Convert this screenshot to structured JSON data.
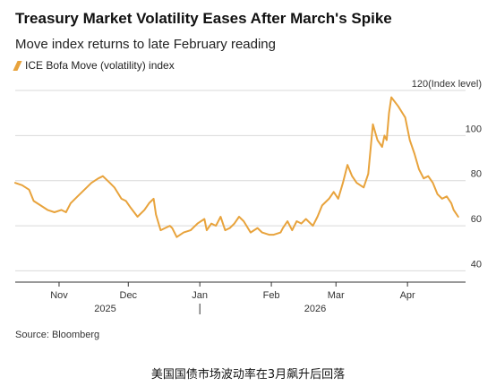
{
  "header": {
    "title": "Treasury Market Volatility Eases After March's Spike",
    "subtitle": "Move index returns to late February reading",
    "legend_label": "ICE Bofa Move (volatility) index"
  },
  "footer": {
    "source": "Source: Bloomberg",
    "caption": "美国国债市场波动率在3月飙升后回落"
  },
  "colors": {
    "series": "#e8a33c",
    "grid": "#d9d9d9",
    "axis": "#333333"
  },
  "chart_data": {
    "type": "line",
    "title": "Treasury Market Volatility Eases After March's Spike",
    "subtitle": "Move index returns to late February reading",
    "y_unit_label": "120(Index level)",
    "ylim": [
      35,
      122
    ],
    "y_ticks": [
      40,
      60,
      80,
      100,
      120
    ],
    "y_tick_labels": [
      "40",
      "60",
      "80",
      "100",
      "120(Index level)"
    ],
    "x_range": [
      "2025-10-13",
      "2026-04-25"
    ],
    "x_ticks": [
      {
        "date": "2025-11-01",
        "label": "Nov"
      },
      {
        "date": "2025-12-01",
        "label": "Dec"
      },
      {
        "date": "2026-01-01",
        "label": "Jan"
      },
      {
        "date": "2026-02-01",
        "label": "Feb"
      },
      {
        "date": "2026-03-01",
        "label": "Mar"
      },
      {
        "date": "2026-04-01",
        "label": "Apr"
      }
    ],
    "year_labels": [
      {
        "date": "2025-11-21",
        "label": "2025"
      },
      {
        "date": "2026-02-20",
        "label": "2026"
      }
    ],
    "year_divider_date": "2026-01-01",
    "grid": true,
    "legend_position": "top-left",
    "series": [
      {
        "name": "ICE Bofa Move (volatility) index",
        "color": "#e8a33c",
        "points": [
          [
            "2025-10-13",
            79
          ],
          [
            "2025-10-16",
            78
          ],
          [
            "2025-10-19",
            76
          ],
          [
            "2025-10-21",
            71
          ],
          [
            "2025-10-24",
            69
          ],
          [
            "2025-10-27",
            67
          ],
          [
            "2025-10-30",
            66
          ],
          [
            "2025-11-02",
            67
          ],
          [
            "2025-11-04",
            66
          ],
          [
            "2025-11-06",
            70
          ],
          [
            "2025-11-09",
            73
          ],
          [
            "2025-11-12",
            76
          ],
          [
            "2025-11-15",
            79
          ],
          [
            "2025-11-18",
            81
          ],
          [
            "2025-11-20",
            82
          ],
          [
            "2025-11-23",
            79
          ],
          [
            "2025-11-25",
            77
          ],
          [
            "2025-11-28",
            72
          ],
          [
            "2025-11-30",
            71
          ],
          [
            "2025-12-02",
            68
          ],
          [
            "2025-12-05",
            64
          ],
          [
            "2025-12-08",
            67
          ],
          [
            "2025-12-10",
            70
          ],
          [
            "2025-12-12",
            72
          ],
          [
            "2025-12-13",
            65
          ],
          [
            "2025-12-15",
            58
          ],
          [
            "2025-12-17",
            59
          ],
          [
            "2025-12-19",
            60
          ],
          [
            "2025-12-20",
            59
          ],
          [
            "2025-12-22",
            55
          ],
          [
            "2025-12-25",
            57
          ],
          [
            "2025-12-28",
            58
          ],
          [
            "2025-12-31",
            61
          ],
          [
            "2026-01-03",
            63
          ],
          [
            "2026-01-04",
            58
          ],
          [
            "2026-01-06",
            61
          ],
          [
            "2026-01-08",
            60
          ],
          [
            "2026-01-10",
            64
          ],
          [
            "2026-01-12",
            58
          ],
          [
            "2026-01-14",
            59
          ],
          [
            "2026-01-16",
            61
          ],
          [
            "2026-01-18",
            64
          ],
          [
            "2026-01-20",
            62
          ],
          [
            "2026-01-23",
            57
          ],
          [
            "2026-01-26",
            59
          ],
          [
            "2026-01-28",
            57
          ],
          [
            "2026-01-31",
            56
          ],
          [
            "2026-02-02",
            56
          ],
          [
            "2026-02-05",
            57
          ],
          [
            "2026-02-06",
            59
          ],
          [
            "2026-02-08",
            62
          ],
          [
            "2026-02-10",
            58
          ],
          [
            "2026-02-12",
            62
          ],
          [
            "2026-02-14",
            61
          ],
          [
            "2026-02-16",
            63
          ],
          [
            "2026-02-19",
            60
          ],
          [
            "2026-02-21",
            64
          ],
          [
            "2026-02-23",
            69
          ],
          [
            "2026-02-26",
            72
          ],
          [
            "2026-02-28",
            75
          ],
          [
            "2026-03-02",
            72
          ],
          [
            "2026-03-04",
            79
          ],
          [
            "2026-03-06",
            87
          ],
          [
            "2026-03-08",
            82
          ],
          [
            "2026-03-10",
            79
          ],
          [
            "2026-03-13",
            77
          ],
          [
            "2026-03-15",
            83
          ],
          [
            "2026-03-16",
            94
          ],
          [
            "2026-03-17",
            105
          ],
          [
            "2026-03-19",
            98
          ],
          [
            "2026-03-21",
            95
          ],
          [
            "2026-03-22",
            100
          ],
          [
            "2026-03-23",
            98
          ],
          [
            "2026-03-24",
            110
          ],
          [
            "2026-03-25",
            117
          ],
          [
            "2026-03-28",
            113
          ],
          [
            "2026-03-31",
            108
          ],
          [
            "2026-04-02",
            98
          ],
          [
            "2026-04-04",
            92
          ],
          [
            "2026-04-06",
            85
          ],
          [
            "2026-04-08",
            81
          ],
          [
            "2026-04-10",
            82
          ],
          [
            "2026-04-12",
            79
          ],
          [
            "2026-04-14",
            74
          ],
          [
            "2026-04-16",
            72
          ],
          [
            "2026-04-18",
            73
          ],
          [
            "2026-04-20",
            70
          ],
          [
            "2026-04-21",
            67
          ],
          [
            "2026-04-23",
            64
          ]
        ]
      }
    ]
  }
}
